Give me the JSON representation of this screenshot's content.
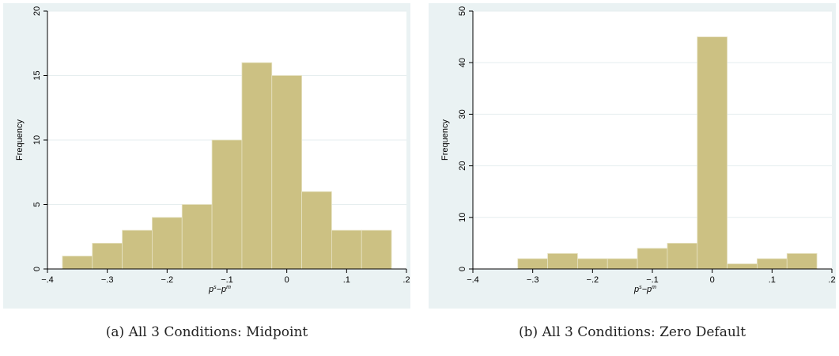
{
  "chart_data": [
    {
      "type": "bar",
      "subtype": "histogram",
      "xlabel": "p^s−p^m",
      "ylabel": "Frequency",
      "xlim": [
        -0.4,
        0.2
      ],
      "ylim": [
        0,
        20
      ],
      "xticks": [
        -0.4,
        -0.3,
        -0.2,
        -0.1,
        0,
        0.1,
        0.2
      ],
      "xtick_labels": [
        "−.4",
        "−.3",
        "−.2",
        "−.1",
        "0",
        ".1",
        ".2"
      ],
      "yticks": [
        0,
        5,
        10,
        15,
        20
      ],
      "ytick_labels": [
        "0",
        "5",
        "10",
        "15",
        "20"
      ],
      "grid": true,
      "bin_width": 0.05,
      "bins": [
        {
          "start": -0.375,
          "end": -0.325,
          "count": 1
        },
        {
          "start": -0.325,
          "end": -0.275,
          "count": 2
        },
        {
          "start": -0.275,
          "end": -0.225,
          "count": 3
        },
        {
          "start": -0.225,
          "end": -0.175,
          "count": 4
        },
        {
          "start": -0.175,
          "end": -0.125,
          "count": 5
        },
        {
          "start": -0.125,
          "end": -0.075,
          "count": 10
        },
        {
          "start": -0.075,
          "end": -0.025,
          "count": 16
        },
        {
          "start": -0.025,
          "end": 0.025,
          "count": 15
        },
        {
          "start": 0.025,
          "end": 0.075,
          "count": 6
        },
        {
          "start": 0.075,
          "end": 0.125,
          "count": 3
        },
        {
          "start": 0.125,
          "end": 0.175,
          "count": 3
        }
      ],
      "bar_color": "#ccc183",
      "caption": "(a)  All 3 Conditions: Midpoint"
    },
    {
      "type": "bar",
      "subtype": "histogram",
      "xlabel": "p^s−p^m",
      "ylabel": "Frequency",
      "xlim": [
        -0.4,
        0.2
      ],
      "ylim": [
        0,
        50
      ],
      "xticks": [
        -0.4,
        -0.3,
        -0.2,
        -0.1,
        0,
        0.1,
        0.2
      ],
      "xtick_labels": [
        "−.4",
        "−.3",
        "−.2",
        "−.1",
        "0",
        ".1",
        ".2"
      ],
      "yticks": [
        0,
        10,
        20,
        30,
        40,
        50
      ],
      "ytick_labels": [
        "0",
        "10",
        "20",
        "30",
        "40",
        "50"
      ],
      "grid": true,
      "bin_width": 0.05,
      "bins": [
        {
          "start": -0.325,
          "end": -0.275,
          "count": 2
        },
        {
          "start": -0.275,
          "end": -0.225,
          "count": 3
        },
        {
          "start": -0.225,
          "end": -0.175,
          "count": 2
        },
        {
          "start": -0.175,
          "end": -0.125,
          "count": 2
        },
        {
          "start": -0.125,
          "end": -0.075,
          "count": 4
        },
        {
          "start": -0.075,
          "end": -0.025,
          "count": 5
        },
        {
          "start": -0.025,
          "end": 0.025,
          "count": 45
        },
        {
          "start": 0.025,
          "end": 0.075,
          "count": 1
        },
        {
          "start": 0.075,
          "end": 0.125,
          "count": 2
        },
        {
          "start": 0.125,
          "end": 0.175,
          "count": 3
        }
      ],
      "bar_color": "#ccc183",
      "caption": "(b)  All 3 Conditions: Zero Default"
    }
  ]
}
